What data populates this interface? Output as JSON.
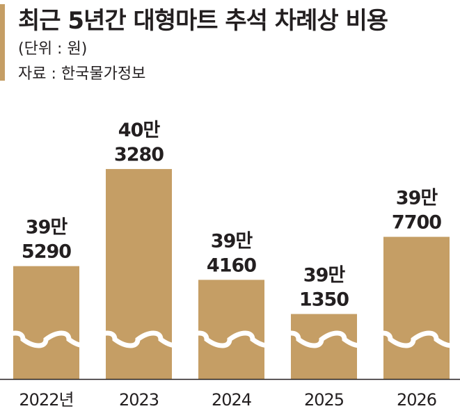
{
  "header": {
    "title": "최근 5년간 대형마트 추석 차례상 비용",
    "unit": "(단위 : 원)",
    "source": "자료 : 한국물가정보"
  },
  "colors": {
    "bar": "#c59e65",
    "accent": "#c59e65",
    "text": "#231f20",
    "baseline": "#231f20",
    "break_wave": "#ffffff"
  },
  "chart_data": {
    "type": "bar",
    "title": "최근 5년간 대형마트 추석 차례상 비용",
    "subtitle": "(단위 : 원)",
    "source": "자료 : 한국물가정보",
    "categories": [
      "2022년",
      "2023",
      "2024",
      "2025",
      "2026"
    ],
    "values": [
      395290,
      403280,
      394160,
      391350,
      397700
    ],
    "data_labels": [
      [
        "39만",
        "5290"
      ],
      [
        "40만",
        "3280"
      ],
      [
        "39만",
        "4160"
      ],
      [
        "39만",
        "1350"
      ],
      [
        "39만",
        "7700"
      ]
    ],
    "xlabel": "",
    "ylabel": "",
    "ylim": [
      386000,
      405000
    ],
    "axis_break": true,
    "grid": false,
    "legend": "none"
  }
}
